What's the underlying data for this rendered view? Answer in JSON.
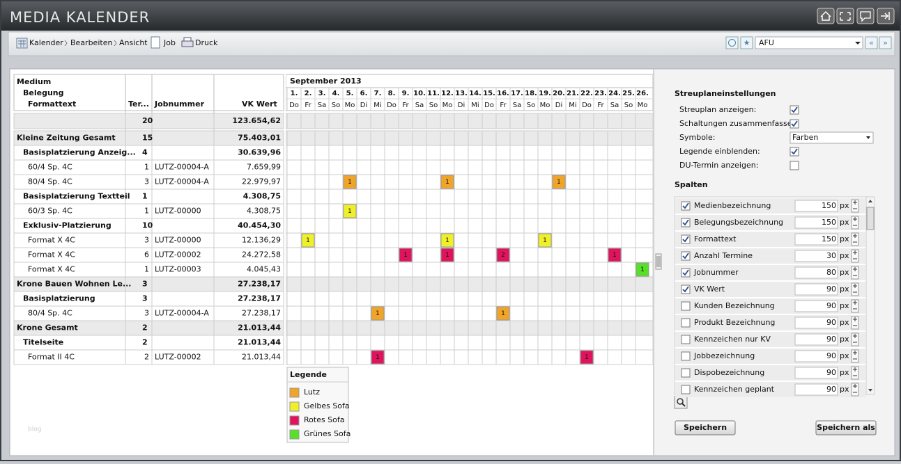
{
  "header": {
    "title": "MEDIA KALENDER"
  },
  "toolbar": {
    "menu": [
      "Kalender",
      "Bearbeiten",
      "Ansicht",
      "Job",
      "Druck"
    ],
    "profile": "AFU"
  },
  "table": {
    "headers": [
      "Medium",
      "Belegung",
      "Formattext",
      "Ter...",
      "Jobnummer",
      "VK Wert"
    ],
    "rows": [
      {
        "terms": 20,
        "value": "123.654,62",
        "level": 0,
        "events": []
      },
      {
        "label": "Kleine Zeitung Gesamt",
        "terms": 15,
        "value": "75.403,01",
        "level": 0,
        "events": []
      },
      {
        "label": "Basisplatzierung Anzeig...",
        "terms": 4,
        "value": "30.639,96",
        "level": 1,
        "events": []
      },
      {
        "label": "60/4 Sp. 4C",
        "terms": 1,
        "job": "LUTZ-00004-A",
        "value": "7.659,99",
        "level": 2,
        "events": []
      },
      {
        "label": "80/4 Sp. 4C",
        "terms": 3,
        "job": "LUTZ-00004-A",
        "value": "22.979,97",
        "level": 2,
        "events": [
          {
            "day": 5,
            "count": 1,
            "color": "#f0a428"
          },
          {
            "day": 12,
            "count": 1,
            "color": "#f0a428"
          },
          {
            "day": 20,
            "count": 1,
            "color": "#f0a428"
          }
        ]
      },
      {
        "label": "Basisplatzierung Textteil",
        "terms": 1,
        "value": "4.308,75",
        "level": 1,
        "events": []
      },
      {
        "label": "60/3 Sp. 4C",
        "terms": 1,
        "job": "LUTZ-00000",
        "value": "4.308,75",
        "level": 2,
        "events": [
          {
            "day": 5,
            "count": 1,
            "color": "#f0f028"
          }
        ]
      },
      {
        "label": "Exklusiv-Platzierung",
        "terms": 10,
        "value": "40.454,30",
        "level": 1,
        "events": []
      },
      {
        "label": "Format X 4C",
        "terms": 3,
        "job": "LUTZ-00000",
        "value": "12.136,29",
        "level": 2,
        "events": [
          {
            "day": 2,
            "count": 1,
            "color": "#f0f028"
          },
          {
            "day": 12,
            "count": 1,
            "color": "#f0f028"
          },
          {
            "day": 19,
            "count": 1,
            "color": "#f0f028"
          }
        ]
      },
      {
        "label": "Format X 4C",
        "terms": 6,
        "job": "LUTZ-00002",
        "value": "24.272,58",
        "level": 2,
        "events": [
          {
            "day": 9,
            "count": 1,
            "color": "#e0145c"
          },
          {
            "day": 12,
            "count": 1,
            "color": "#e0145c"
          },
          {
            "day": 16,
            "count": 2,
            "color": "#e0145c"
          },
          {
            "day": 24,
            "count": 1,
            "color": "#e0145c"
          }
        ]
      },
      {
        "label": "Format X 4C",
        "terms": 1,
        "job": "LUTZ-00003",
        "value": "4.045,43",
        "level": 2,
        "events": [
          {
            "day": 26,
            "count": 1,
            "color": "#58e028"
          }
        ]
      },
      {
        "label": "Krone Bauen Wohnen Le...",
        "terms": 3,
        "value": "27.238,17",
        "level": 0,
        "events": []
      },
      {
        "label": "Basisplatzierung",
        "terms": 3,
        "value": "27.238,17",
        "level": 1,
        "events": []
      },
      {
        "label": "80/4 Sp. 4C",
        "terms": 3,
        "job": "LUTZ-00004-A",
        "value": "27.238,17",
        "level": 2,
        "events": [
          {
            "day": 7,
            "count": 1,
            "color": "#f0a428"
          },
          {
            "day": 16,
            "count": 1,
            "color": "#f0a428"
          }
        ]
      },
      {
        "label": "Krone Gesamt",
        "terms": 2,
        "value": "21.013,44",
        "level": 0,
        "events": []
      },
      {
        "label": "Titelseite",
        "terms": 2,
        "value": "21.013,44",
        "level": 1,
        "events": []
      },
      {
        "label": "Format II 4C",
        "terms": 2,
        "job": "LUTZ-00002",
        "value": "21.013,44",
        "level": 2,
        "events": [
          {
            "day": 7,
            "count": 1,
            "color": "#e0145c"
          },
          {
            "day": 22,
            "count": 1,
            "color": "#e0145c"
          }
        ]
      }
    ]
  },
  "calendar": {
    "month": "September 2013",
    "days": [
      {
        "num": "1.",
        "weekday": "Do"
      },
      {
        "num": "2.",
        "weekday": "Fr"
      },
      {
        "num": "3.",
        "weekday": "Sa"
      },
      {
        "num": "4.",
        "weekday": "So"
      },
      {
        "num": "5.",
        "weekday": "Mo"
      },
      {
        "num": "6.",
        "weekday": "Di"
      },
      {
        "num": "7.",
        "weekday": "Mi"
      },
      {
        "num": "8.",
        "weekday": "Do"
      },
      {
        "num": "9.",
        "weekday": "Fr"
      },
      {
        "num": "10.",
        "weekday": "Sa"
      },
      {
        "num": "11.",
        "weekday": "So"
      },
      {
        "num": "12.",
        "weekday": "Mo"
      },
      {
        "num": "13.",
        "weekday": "Di"
      },
      {
        "num": "14.",
        "weekday": "Mi"
      },
      {
        "num": "15.",
        "weekday": "Do"
      },
      {
        "num": "16.",
        "weekday": "Fr"
      },
      {
        "num": "17.",
        "weekday": "Sa"
      },
      {
        "num": "18.",
        "weekday": "So"
      },
      {
        "num": "19.",
        "weekday": "Mo"
      },
      {
        "num": "20.",
        "weekday": "Di"
      },
      {
        "num": "21.",
        "weekday": "Mi"
      },
      {
        "num": "22.",
        "weekday": "Do"
      },
      {
        "num": "23.",
        "weekday": "Fr"
      },
      {
        "num": "24.",
        "weekday": "Sa"
      },
      {
        "num": "25.",
        "weekday": "So"
      },
      {
        "num": "26.",
        "weekday": "Mo"
      }
    ],
    "legend": {
      "title": "Legende",
      "items": [
        {
          "label": "Lutz",
          "color": "#f0a428"
        },
        {
          "label": "Gelbes Sofa",
          "color": "#f0f028"
        },
        {
          "label": "Rotes Sofa",
          "color": "#e0145c"
        },
        {
          "label": "Grünes Sofa",
          "color": "#58e028"
        }
      ]
    }
  },
  "settings": {
    "title": "Streuplaneinstellungen",
    "options": [
      {
        "label": "Streuplan anzeigen:",
        "checked": true
      },
      {
        "label": "Schaltungen zusammenfassen:",
        "checked": true
      },
      {
        "label": "Symbole:",
        "select": "Farben"
      },
      {
        "label": "Legende einblenden:",
        "checked": true
      },
      {
        "label": "DU-Termin anzeigen:",
        "checked": false
      }
    ],
    "columns_title": "Spalten",
    "unit": "px",
    "columns": [
      {
        "label": "Medienbezeichnung",
        "checked": true,
        "width": 150
      },
      {
        "label": "Belegungsbezeichnung",
        "checked": true,
        "width": 150
      },
      {
        "label": "Formattext",
        "checked": true,
        "width": 150
      },
      {
        "label": "Anzahl Termine",
        "checked": true,
        "width": 30
      },
      {
        "label": "Jobnummer",
        "checked": true,
        "width": 80
      },
      {
        "label": "VK Wert",
        "checked": true,
        "width": 90
      },
      {
        "label": "Kunden Bezeichnung",
        "checked": false,
        "width": 90
      },
      {
        "label": "Produkt Bezeichnung",
        "checked": false,
        "width": 90
      },
      {
        "label": "Kennzeichen nur KV",
        "checked": false,
        "width": 90
      },
      {
        "label": "Jobbezeichnung",
        "checked": false,
        "width": 90
      },
      {
        "label": "Dispobezeichnung",
        "checked": false,
        "width": 90
      },
      {
        "label": "Kennzeichen geplant",
        "checked": false,
        "width": 90
      }
    ],
    "buttons": [
      "Speichern",
      "Speichern als"
    ]
  },
  "watermark": "blog"
}
